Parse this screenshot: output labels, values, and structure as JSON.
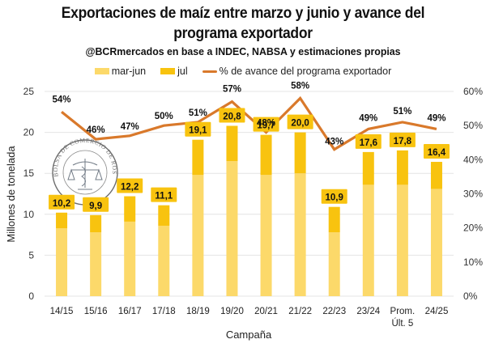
{
  "chart_data": {
    "type": "bar",
    "subtype": "stacked-bar-with-line",
    "title": "Exportaciones de maíz entre marzo y junio y avance del programa exportador",
    "title_lines": [
      "Exportaciones de maíz entre marzo y junio y avance del",
      "programa exportador"
    ],
    "subtitle": "@BCRmercados en base a INDEC, NABSA y estimaciones propias",
    "xlabel": "Campaña",
    "ylabel": "Millones de tonelada",
    "y2label": "",
    "ylim": [
      0,
      25
    ],
    "y2lim": [
      0,
      0.6
    ],
    "yticks": [
      "0",
      "5",
      "10",
      "15",
      "20",
      "25"
    ],
    "y2ticks": [
      "0%",
      "10%",
      "20%",
      "30%",
      "40%",
      "50%",
      "60%"
    ],
    "grid": true,
    "legend_position": "top-center",
    "categories": [
      "14/15",
      "15/16",
      "16/17",
      "17/18",
      "18/19",
      "19/20",
      "20/21",
      "21/22",
      "22/23",
      "23/24",
      "Prom. Últ. 5",
      "24/25"
    ],
    "category_lines": [
      [
        "14/15"
      ],
      [
        "15/16"
      ],
      [
        "16/17"
      ],
      [
        "17/18"
      ],
      [
        "18/19"
      ],
      [
        "19/20"
      ],
      [
        "20/21"
      ],
      [
        "21/22"
      ],
      [
        "22/23"
      ],
      [
        "23/24"
      ],
      [
        "Prom.",
        "Últ. 5"
      ],
      [
        "24/25"
      ]
    ],
    "series": [
      {
        "name": "mar-jun",
        "type": "bar",
        "axis": "left",
        "color": "#fcd96a",
        "values": [
          8.3,
          7.8,
          9.1,
          8.6,
          14.8,
          16.5,
          14.8,
          15.0,
          7.8,
          13.6,
          13.6,
          13.1
        ]
      },
      {
        "name": "jul",
        "type": "bar",
        "axis": "left",
        "color": "#f8c30f",
        "values": [
          1.9,
          2.1,
          3.1,
          2.5,
          4.3,
          4.3,
          4.9,
          5.0,
          3.1,
          4.0,
          4.2,
          3.3
        ]
      },
      {
        "name": "% de avance del programa exportador",
        "type": "line",
        "axis": "right",
        "color": "#d9792b",
        "values": [
          0.54,
          0.46,
          0.47,
          0.5,
          0.51,
          0.57,
          0.48,
          0.58,
          0.43,
          0.49,
          0.51,
          0.49
        ]
      }
    ],
    "total_labels": [
      "10,2",
      "9,9",
      "12,2",
      "11,1",
      "19,1",
      "20,8",
      "19,7",
      "20,0",
      "10,9",
      "17,6",
      "17,8",
      "16,4"
    ],
    "pct_labels": [
      "54%",
      "46%",
      "47%",
      "50%",
      "51%",
      "57%",
      "48%",
      "58%",
      "43%",
      "49%",
      "51%",
      "49%"
    ]
  },
  "legend": [
    {
      "label": "mar-jun",
      "kind": "bar",
      "color": "#fcd96a"
    },
    {
      "label": "jul",
      "kind": "bar",
      "color": "#f8c30f"
    },
    {
      "label": "% de avance del programa exportador",
      "kind": "line",
      "color": "#d9792b"
    }
  ],
  "watermark": {
    "text": "BOLSA DE COMERCIO DE ROSARIO"
  },
  "colors": {
    "label_bg": "#f8c30f",
    "grid": "#e4e4e4"
  }
}
